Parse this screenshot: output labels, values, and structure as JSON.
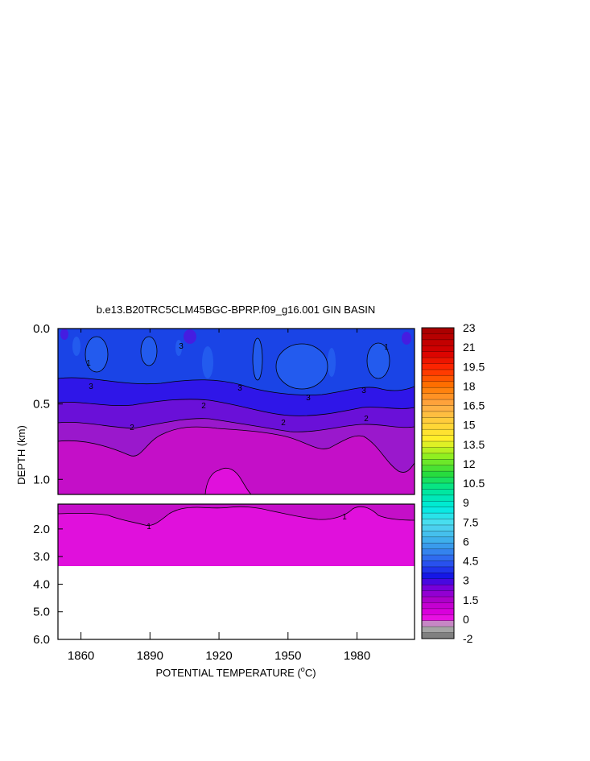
{
  "chart_data": {
    "type": "heatmap",
    "title": "b.e13.B20TRC5CLM45BGC-BPRP.f09_g16.001 GIN BASIN",
    "ylabel": "DEPTH (km)",
    "xlabel_main": "POTENTIAL TEMPERATURE (",
    "xlabel_sup": "o",
    "xlabel_end": "C)",
    "x_ticks": [
      "1860",
      "1890",
      "1920",
      "1950",
      "1980"
    ],
    "x_tick_values": [
      1860,
      1890,
      1920,
      1950,
      1980
    ],
    "xlim": [
      1850,
      2005
    ],
    "upper_panel": {
      "ylim": [
        0.0,
        1.1
      ],
      "y_ticks": [
        "0.0",
        "0.5",
        "1.0"
      ],
      "y_tick_values": [
        0.0,
        0.5,
        1.0
      ]
    },
    "lower_panel": {
      "y_ticks": [
        "2.0",
        "3.0",
        "4.0",
        "5.0",
        "6.0"
      ],
      "y_tick_values": [
        2.0,
        3.0,
        4.0,
        5.0,
        6.0
      ],
      "ylim": [
        1.1,
        6.0
      ],
      "data_bottom_depth": 3.35
    },
    "colorbar_labels": [
      "23",
      "21",
      "19.5",
      "18",
      "16.5",
      "15",
      "13.5",
      "12",
      "10.5",
      "9",
      "7.5",
      "6",
      "4.5",
      "3",
      "1.5",
      "0",
      "-2"
    ],
    "contour_labels": [
      "1",
      "1",
      "1",
      "1",
      "2",
      "2",
      "2",
      "2",
      "3",
      "3",
      "3",
      "3",
      "3"
    ]
  }
}
